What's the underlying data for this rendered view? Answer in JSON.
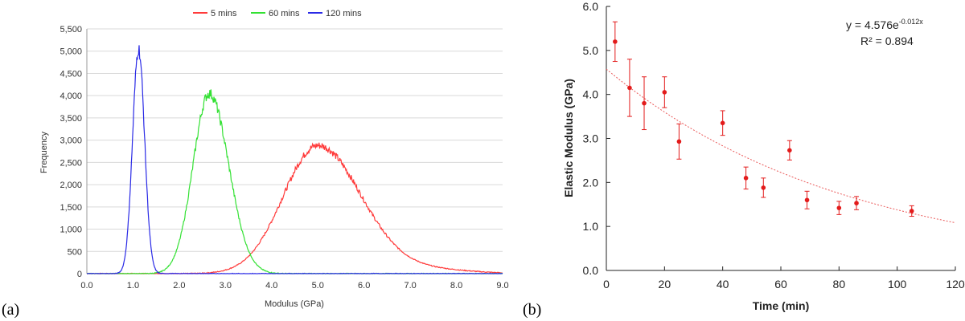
{
  "chart_data": [
    {
      "panel_label": "(a)",
      "type": "line",
      "xlabel": "Modulus (GPa)",
      "ylabel": "Frequency",
      "xlim": [
        0,
        9
      ],
      "ylim": [
        0,
        5500
      ],
      "x_ticks": [
        "0.0",
        "1.0",
        "2.0",
        "3.0",
        "4.0",
        "5.0",
        "6.0",
        "7.0",
        "8.0",
        "9.0"
      ],
      "y_ticks": [
        "0",
        "500",
        "1,000",
        "1,500",
        "2,000",
        "2,500",
        "3,000",
        "3,500",
        "4,000",
        "4,500",
        "5,000",
        "5,500"
      ],
      "legend_position": "top",
      "series": [
        {
          "name": "5 mins",
          "color": "#ff3b3b",
          "peak_x": 5.0,
          "peak_y": 2880,
          "sigma": 0.75
        },
        {
          "name": "60 mins",
          "color": "#33e133",
          "peak_x": 2.65,
          "peak_y": 4050,
          "sigma": 0.35
        },
        {
          "name": "120 mins",
          "color": "#2a2ae6",
          "peak_x": 1.12,
          "peak_y": 5050,
          "sigma": 0.13
        }
      ]
    },
    {
      "panel_label": "(b)",
      "type": "scatter",
      "xlabel": "Time (min)",
      "ylabel": "Elastic Modulus (GPa)",
      "xlim": [
        0,
        120
      ],
      "ylim": [
        0,
        6
      ],
      "x_ticks": [
        "0",
        "20",
        "40",
        "60",
        "80",
        "100",
        "120"
      ],
      "y_ticks": [
        "0.0",
        "1.0",
        "2.0",
        "3.0",
        "4.0",
        "5.0",
        "6.0"
      ],
      "points": [
        {
          "x": 3,
          "y": 5.2,
          "err": 0.45
        },
        {
          "x": 8,
          "y": 4.15,
          "err": 0.65
        },
        {
          "x": 13,
          "y": 3.8,
          "err": 0.6
        },
        {
          "x": 20,
          "y": 4.05,
          "err": 0.35
        },
        {
          "x": 25,
          "y": 2.93,
          "err": 0.4
        },
        {
          "x": 40,
          "y": 3.35,
          "err": 0.28
        },
        {
          "x": 48,
          "y": 2.1,
          "err": 0.25
        },
        {
          "x": 54,
          "y": 1.88,
          "err": 0.22
        },
        {
          "x": 63,
          "y": 2.73,
          "err": 0.22
        },
        {
          "x": 69,
          "y": 1.6,
          "err": 0.2
        },
        {
          "x": 80,
          "y": 1.42,
          "err": 0.15
        },
        {
          "x": 86,
          "y": 1.53,
          "err": 0.15
        },
        {
          "x": 105,
          "y": 1.35,
          "err": 0.12
        }
      ],
      "trendline": {
        "a": 4.576,
        "b": -0.012
      },
      "equation_main": "y = 4.576e",
      "equation_exp": "-0.012x",
      "r_squared": "R² = 0.894",
      "color": "#e31b1b"
    }
  ]
}
